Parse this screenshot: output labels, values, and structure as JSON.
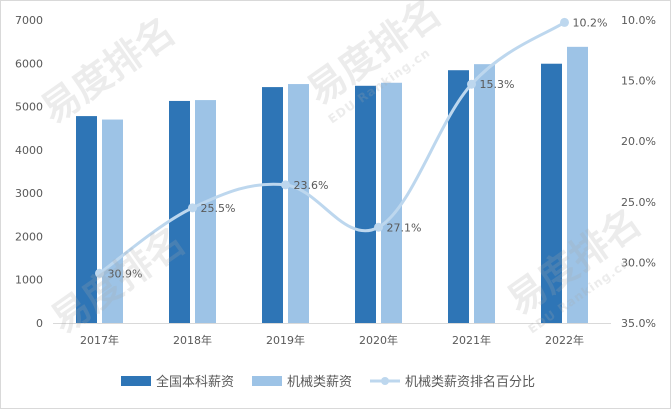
{
  "watermark": {
    "text": "易度排名",
    "sub": "EDU Ranking.cn"
  },
  "chart_data": {
    "type": "bar",
    "title": "",
    "xlabel": "",
    "ylabel": "",
    "categories": [
      "2017年",
      "2018年",
      "2019年",
      "2020年",
      "2021年",
      "2022年"
    ],
    "ylim": [
      0,
      7000
    ],
    "y_ticks": [
      "0",
      "1000",
      "2000",
      "3000",
      "4000",
      "5000",
      "6000",
      "7000"
    ],
    "y2lim": [
      35.0,
      10.0
    ],
    "y2_reversed": true,
    "y2_ticks": [
      "10.0%",
      "15.0%",
      "20.0%",
      "25.0%",
      "30.0%",
      "35.0%"
    ],
    "grid": false,
    "legend_position": "bottom",
    "series": [
      {
        "name": "全国本科薪资",
        "type": "bar",
        "axis": "left",
        "color": "#2e75b6",
        "values": [
          4780,
          5130,
          5450,
          5480,
          5840,
          5990
        ]
      },
      {
        "name": "机械类薪资",
        "type": "bar",
        "axis": "left",
        "color": "#9dc3e6",
        "values": [
          4700,
          5150,
          5520,
          5550,
          5980,
          6380
        ]
      },
      {
        "name": "机械类薪资排名百分比",
        "type": "line",
        "axis": "right",
        "color": "#bdd7ee",
        "values": [
          30.9,
          25.5,
          23.6,
          27.1,
          15.3,
          10.2
        ],
        "labels": [
          "30.9%",
          "25.5%",
          "23.6%",
          "27.1%",
          "15.3%",
          "10.2%"
        ]
      }
    ]
  }
}
